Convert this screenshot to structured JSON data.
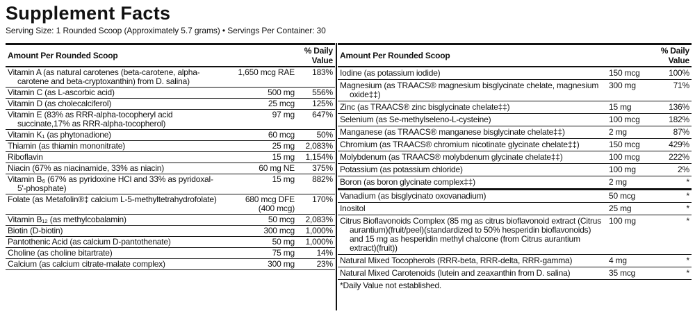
{
  "header": {
    "title": "Supplement Facts",
    "serving": "Serving Size: 1 Rounded Scoop (Approximately 5.7 grams) • Servings Per Container: 30"
  },
  "left": {
    "headers": [
      "Amount Per Rounded Scoop",
      "% Daily Value"
    ],
    "rows": [
      [
        "Vitamin A (as natural carotenes (beta-carotene, alpha-carotene and beta-cryptoxanthin) from D. salina)",
        "1,650 mcg RAE",
        "183%"
      ],
      [
        "Vitamin C (as L-ascorbic acid)",
        "500 mg",
        "556%"
      ],
      [
        "Vitamin D (as cholecalciferol)",
        "25 mcg",
        "125%"
      ],
      [
        "Vitamin E (83% as RRR-alpha-tocopheryl acid succinate,17% as RRR-alpha-tocopherol)",
        "97 mg",
        "647%"
      ],
      [
        "Vitamin K₁ (as phytonadione)",
        "60 mcg",
        "50%"
      ],
      [
        "Thiamin (as thiamin mononitrate)",
        "25 mg",
        "2,083%"
      ],
      [
        "Riboflavin",
        "15 mg",
        "1,154%"
      ],
      [
        "Niacin (67% as niacinamide, 33% as niacin)",
        "60 mg NE",
        "375%"
      ],
      [
        "Vitamin B₆ (67% as pyridoxine HCl and 33% as pyridoxal-5'-phosphate)",
        "15 mg",
        "882%"
      ],
      [
        "Folate (as Metafolin®‡ calcium L-5-methyltetrahydrofolate)",
        "680 mcg DFE\n(400 mcg)",
        "170%"
      ],
      [
        "Vitamin B₁₂ (as methylcobalamin)",
        "50 mcg",
        "2,083%"
      ],
      [
        "Biotin (D-biotin)",
        "300 mcg",
        "1,000%"
      ],
      [
        "Pantothenic Acid (as calcium D-pantothenate)",
        "50 mg",
        "1,000%"
      ],
      [
        "Choline (as choline bitartrate)",
        "75 mg",
        "14%"
      ],
      [
        "Calcium (as calcium citrate-malate complex)",
        "300 mg",
        "23%"
      ]
    ]
  },
  "right": {
    "headers": [
      "Amount Per Rounded Scoop",
      "% Daily Value"
    ],
    "rows": [
      [
        "Iodine (as potassium iodide)",
        "150 mcg",
        "100%"
      ],
      [
        "Magnesium (as TRAACS® magnesium bisglycinate chelate, magnesium oxide‡‡)",
        "300 mg",
        "71%"
      ],
      [
        "Zinc (as TRAACS® zinc bisglycinate chelate‡‡)",
        "15 mg",
        "136%"
      ],
      [
        "Selenium (as Se-methylseleno-L-cysteine)",
        "100 mcg",
        "182%"
      ],
      [
        "Manganese (as TRAACS® manganese bisglycinate chelate‡‡)",
        "2 mg",
        "87%"
      ],
      [
        "Chromium (as TRAACS® chromium nicotinate glycinate chelate‡‡)",
        "150 mcg",
        "429%"
      ],
      [
        "Molybdenum (as TRAACS® molybdenum glycinate chelate‡‡)",
        "100 mcg",
        "222%"
      ],
      [
        "Potassium (as potassium chloride)",
        "100 mg",
        "2%"
      ],
      [
        "Boron (as boron glycinate complex‡‡)",
        "2 mg",
        "*"
      ],
      [
        "Vanadium (as bisglycinato oxovanadium)",
        "50 mcg",
        "*"
      ],
      [
        "Inositol",
        "25 mg",
        "*"
      ],
      [
        "Citrus Bioflavonoids Complex (85 mg as citrus bioflavonoid extract (Citrus aurantium)(fruit/peel)(standardized to 50% hesperidin bioflavonoids) and 15 mg as hesperidin methyl chalcone (from Citrus aurantium extract)(fruit))",
        "100 mg",
        "*"
      ],
      [
        "Natural Mixed Tocopherols (RRR-beta, RRR-delta, RRR-gamma)",
        "4 mg",
        "*"
      ],
      [
        "Natural Mixed Carotenoids (lutein and zeaxanthin from D. salina)",
        "35 mcg",
        "*"
      ]
    ],
    "footnote": "*Daily Value not established."
  }
}
